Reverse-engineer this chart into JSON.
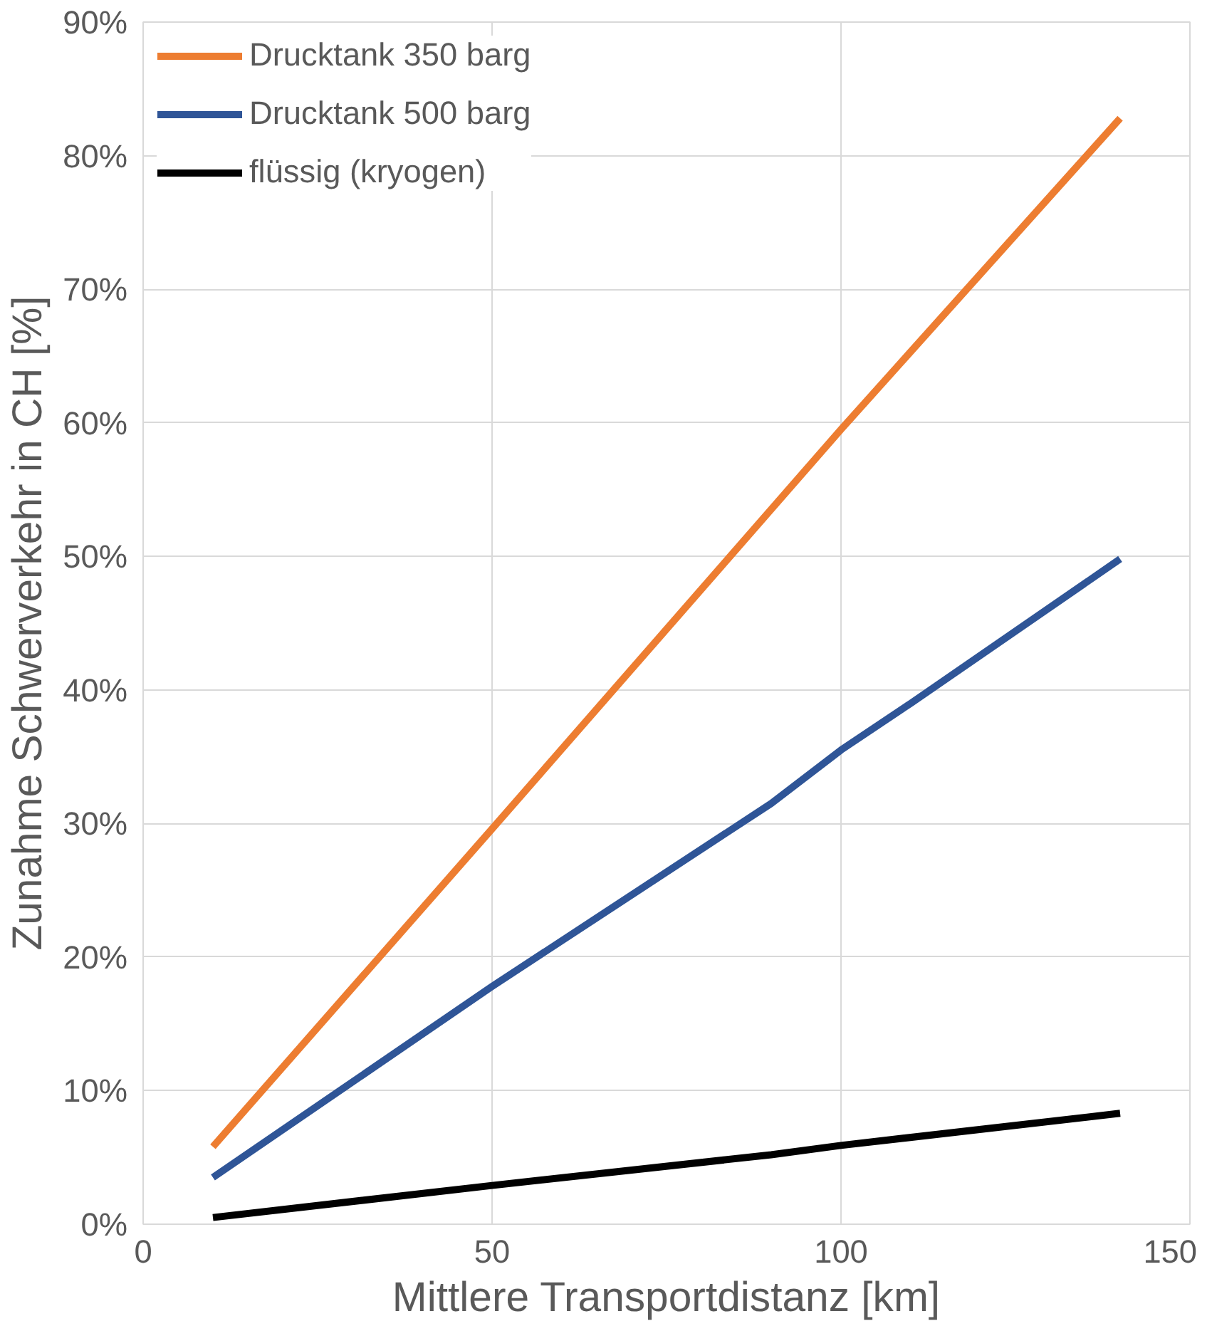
{
  "chart_data": {
    "type": "line",
    "xlabel": "Mittlere Transportdistanz [km]",
    "ylabel": "Zunahme Schwerverkehr in CH [%]",
    "xlim": [
      0,
      150
    ],
    "xticks": [
      0,
      50,
      100,
      150
    ],
    "ylim": [
      0,
      0.9
    ],
    "yticks": [
      {
        "value": 0,
        "label": "0%"
      },
      {
        "value": 0.1,
        "label": "10%"
      },
      {
        "value": 0.2,
        "label": "20%"
      },
      {
        "value": 0.3,
        "label": "30%"
      },
      {
        "value": 0.4,
        "label": "40%"
      },
      {
        "value": 0.5,
        "label": "50%"
      },
      {
        "value": 0.6,
        "label": "60%"
      },
      {
        "value": 0.7,
        "label": "70%"
      },
      {
        "value": 0.8,
        "label": "80%"
      },
      {
        "value": 0.9,
        "label": "90%"
      }
    ],
    "grid": true,
    "legend": "top left",
    "marker": "none",
    "line_style": "solid",
    "series": [
      {
        "name": "Drucktank 350 barg",
        "color": "#ed7d31",
        "x": [
          10,
          50,
          100,
          140
        ],
        "values": [
          0.058,
          0.296,
          0.595,
          0.828
        ]
      },
      {
        "name": "Drucktank 500 barg",
        "color": "#2f5597",
        "x": [
          10,
          50,
          90,
          100,
          110,
          140
        ],
        "values": [
          0.035,
          0.178,
          0.315,
          0.355,
          0.39,
          0.498
        ]
      },
      {
        "name": "flüssig (kryogen)",
        "color": "#000000",
        "x": [
          10,
          50,
          90,
          100,
          140
        ],
        "values": [
          0.005,
          0.029,
          0.052,
          0.059,
          0.083
        ]
      }
    ]
  }
}
